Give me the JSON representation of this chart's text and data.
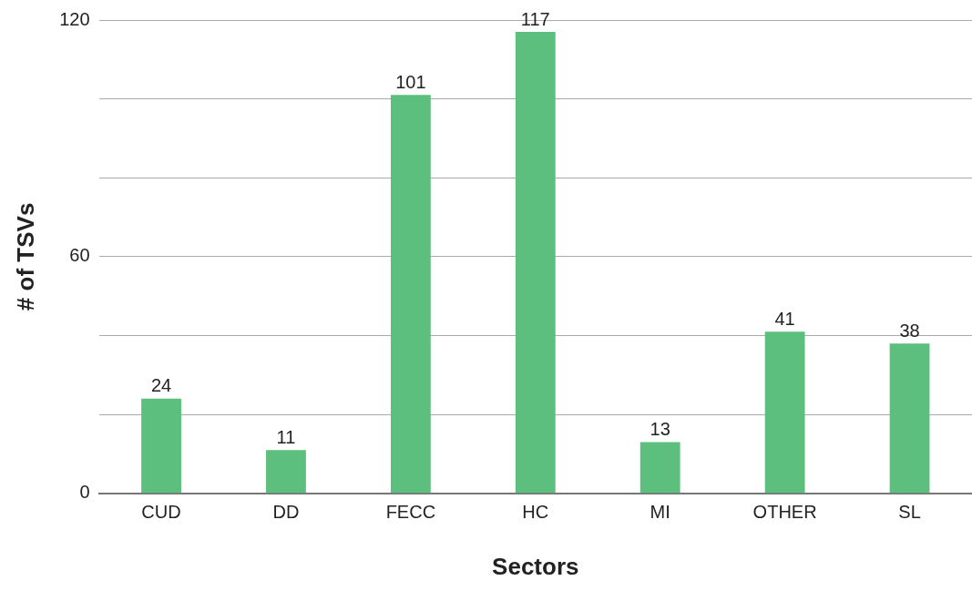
{
  "chart_data": {
    "type": "bar",
    "xlabel": "Sectors",
    "ylabel": "# of TSVs",
    "categories": [
      "CUD",
      "DD",
      "FECC",
      "HC",
      "MI",
      "OTHER",
      "SL"
    ],
    "values": [
      24,
      11,
      101,
      117,
      13,
      41,
      38
    ],
    "color": "#5cbf7d",
    "ylim": [
      0,
      120
    ],
    "yticks": [
      0,
      {
        "value": 20,
        "label": null
      },
      {
        "value": 40,
        "label": null
      },
      60,
      {
        "value": 80,
        "label": null
      },
      {
        "value": 100,
        "label": null
      },
      120
    ],
    "grid": "y",
    "legend": false,
    "data_labels": true
  }
}
